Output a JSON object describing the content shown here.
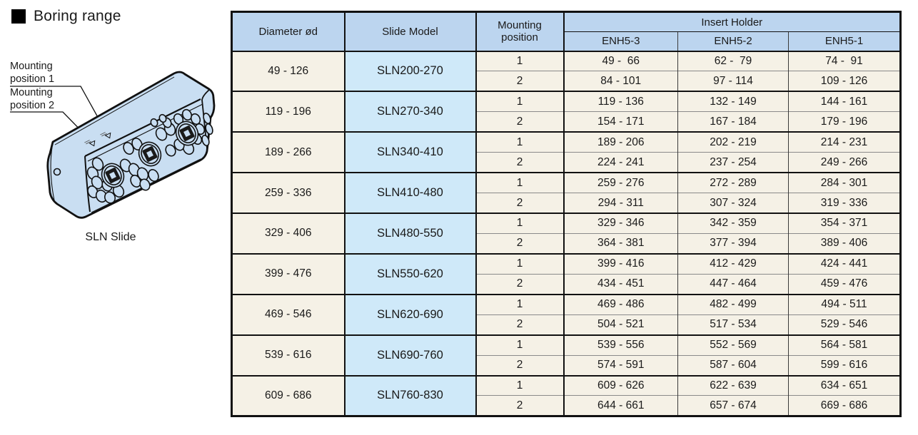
{
  "title": "Boring range",
  "illustration": {
    "label1": "Mounting position 1",
    "label2": "Mounting position 2",
    "caption": "SLN Slide"
  },
  "table": {
    "headers": {
      "diameter": "Diameter ød",
      "slide_model": "Slide Model",
      "mounting_position": "Mounting position",
      "insert_holder": "Insert Holder",
      "enh_columns": [
        "ENH5-3",
        "ENH5-2",
        "ENH5-1"
      ]
    },
    "rows": [
      {
        "diameter": "49 - 126",
        "model": "SLN200-270",
        "positions": [
          {
            "label": "1",
            "values": [
              "49 -  66",
              "62 -  79",
              "74 -  91"
            ]
          },
          {
            "label": "2",
            "values": [
              "84 - 101",
              "97 - 114",
              "109 - 126"
            ]
          }
        ]
      },
      {
        "diameter": "119 - 196",
        "model": "SLN270-340",
        "positions": [
          {
            "label": "1",
            "values": [
              "119 - 136",
              "132 - 149",
              "144 - 161"
            ]
          },
          {
            "label": "2",
            "values": [
              "154 - 171",
              "167 - 184",
              "179 - 196"
            ]
          }
        ]
      },
      {
        "diameter": "189 - 266",
        "model": "SLN340-410",
        "positions": [
          {
            "label": "1",
            "values": [
              "189 - 206",
              "202 - 219",
              "214 - 231"
            ]
          },
          {
            "label": "2",
            "values": [
              "224 - 241",
              "237 - 254",
              "249 - 266"
            ]
          }
        ]
      },
      {
        "diameter": "259 - 336",
        "model": "SLN410-480",
        "positions": [
          {
            "label": "1",
            "values": [
              "259 - 276",
              "272 - 289",
              "284 - 301"
            ]
          },
          {
            "label": "2",
            "values": [
              "294 - 311",
              "307 - 324",
              "319 - 336"
            ]
          }
        ]
      },
      {
        "diameter": "329 - 406",
        "model": "SLN480-550",
        "positions": [
          {
            "label": "1",
            "values": [
              "329 - 346",
              "342 - 359",
              "354 - 371"
            ]
          },
          {
            "label": "2",
            "values": [
              "364 - 381",
              "377 - 394",
              "389 - 406"
            ]
          }
        ]
      },
      {
        "diameter": "399 - 476",
        "model": "SLN550-620",
        "positions": [
          {
            "label": "1",
            "values": [
              "399 - 416",
              "412 - 429",
              "424 - 441"
            ]
          },
          {
            "label": "2",
            "values": [
              "434 - 451",
              "447 - 464",
              "459 - 476"
            ]
          }
        ]
      },
      {
        "diameter": "469 - 546",
        "model": "SLN620-690",
        "positions": [
          {
            "label": "1",
            "values": [
              "469 - 486",
              "482 - 499",
              "494 - 511"
            ]
          },
          {
            "label": "2",
            "values": [
              "504 - 521",
              "517 - 534",
              "529 - 546"
            ]
          }
        ]
      },
      {
        "diameter": "539 - 616",
        "model": "SLN690-760",
        "positions": [
          {
            "label": "1",
            "values": [
              "539 - 556",
              "552 - 569",
              "564 - 581"
            ]
          },
          {
            "label": "2",
            "values": [
              "574 - 591",
              "587 - 604",
              "599 - 616"
            ]
          }
        ]
      },
      {
        "diameter": "609 - 686",
        "model": "SLN760-830",
        "positions": [
          {
            "label": "1",
            "values": [
              "609 - 626",
              "622 - 639",
              "634 - 651"
            ]
          },
          {
            "label": "2",
            "values": [
              "644 - 661",
              "657 - 674",
              "669 - 686"
            ]
          }
        ]
      }
    ]
  },
  "colors": {
    "header_blue": "#bcd5ef",
    "model_blue": "#cfe9f9",
    "cell_cream": "#f5f1e6",
    "slide_blue": "#c9def2",
    "ink": "#1a1a1a",
    "thin_gray": "#8a8a8a"
  }
}
